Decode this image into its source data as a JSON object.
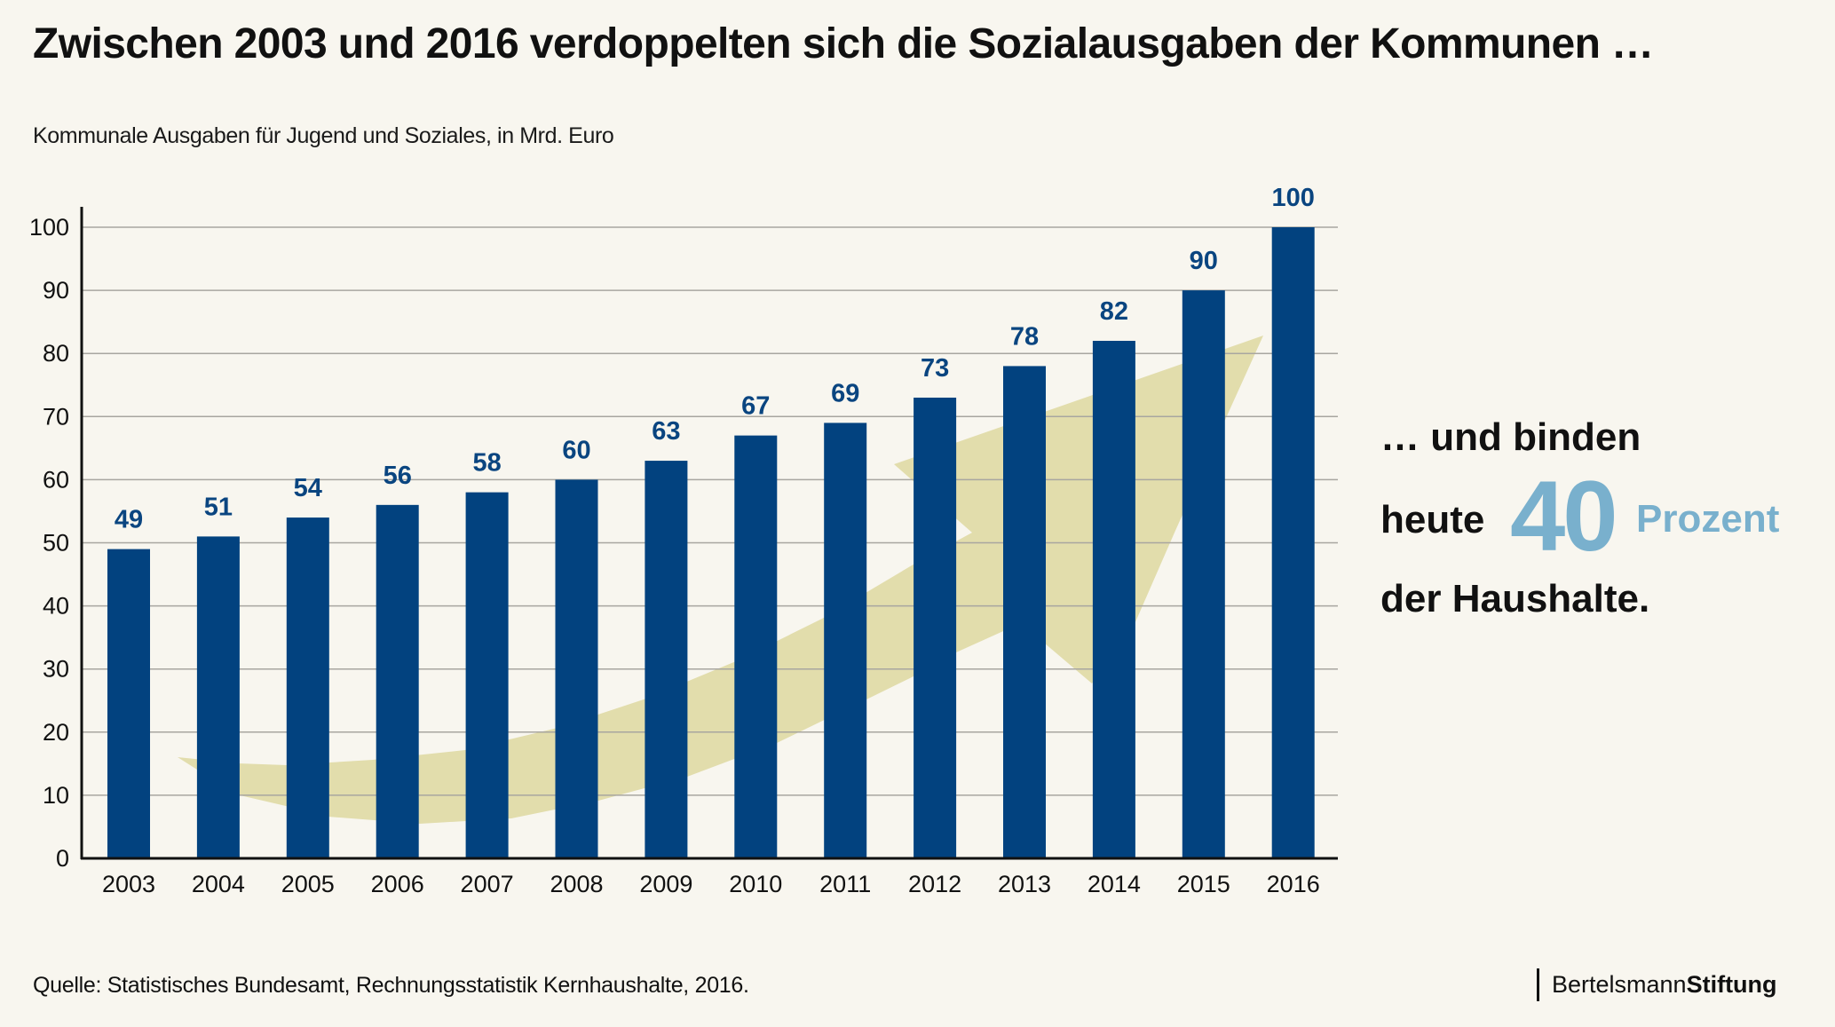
{
  "header": {
    "title": "Zwischen 2003 und 2016 verdoppelten sich die Sozialausgaben der Kommunen …",
    "subtitle": "Kommunale Ausgaben für Jugend und Soziales, in Mrd. Euro"
  },
  "annotation": {
    "line1": "… und binden",
    "line2_prefix": "heute",
    "highlight_number": "40",
    "highlight_unit": "Prozent",
    "line3": "der Haushalte."
  },
  "footer": {
    "source": "Quelle: Statistisches Bundesamt, Rechnungsstatistik Kernhaushalte, 2016.",
    "logo_regular": "Bertelsmann",
    "logo_bold": "Stiftung"
  },
  "colors": {
    "background": "#f8f6ef",
    "bar": "#02427f",
    "value_label": "#0a4580",
    "trend_arrow": "#e2ddac",
    "highlight": "#79b0cd",
    "gridline": "#a8a6a0"
  },
  "chart_data": {
    "type": "bar",
    "title": "Zwischen 2003 und 2016 verdoppelten sich die Sozialausgaben der Kommunen …",
    "subtitle": "Kommunale Ausgaben für Jugend und Soziales, in Mrd. Euro",
    "xlabel": "",
    "ylabel": "",
    "categories": [
      "2003",
      "2004",
      "2005",
      "2006",
      "2007",
      "2008",
      "2009",
      "2010",
      "2011",
      "2012",
      "2013",
      "2014",
      "2015",
      "2016"
    ],
    "values": [
      49,
      51,
      54,
      56,
      58,
      60,
      63,
      67,
      69,
      73,
      78,
      82,
      90,
      100
    ],
    "data_labels": [
      "49",
      "51",
      "54",
      "56",
      "58",
      "60",
      "63",
      "67",
      "69",
      "73",
      "78",
      "82",
      "90",
      "100"
    ],
    "ylim": [
      0,
      100
    ],
    "yticks": [
      0,
      10,
      20,
      30,
      40,
      50,
      60,
      70,
      80,
      90,
      100
    ],
    "grid": true,
    "legend": "none",
    "decoration": "upward trend arrow behind bars"
  }
}
